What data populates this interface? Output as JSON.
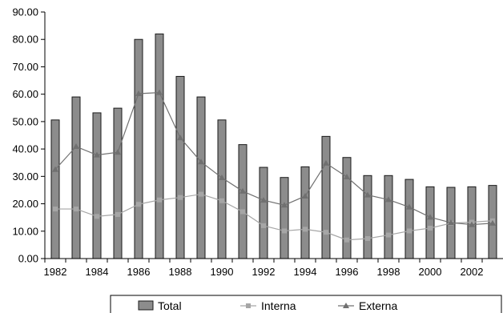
{
  "chart_data": {
    "type": "bar",
    "title": "",
    "xlabel": "",
    "ylabel": "",
    "ylim": [
      0,
      90
    ],
    "y_ticks": [
      "0.00",
      "10.00",
      "20.00",
      "30.00",
      "40.00",
      "50.00",
      "60.00",
      "70.00",
      "80.00",
      "90.00"
    ],
    "x": [
      1982,
      1983,
      1984,
      1985,
      1986,
      1987,
      1988,
      1989,
      1990,
      1991,
      1992,
      1993,
      1994,
      1995,
      1996,
      1997,
      1998,
      1999,
      2000,
      2001,
      2002,
      2003
    ],
    "x_tick_labels": [
      "1982",
      "1984",
      "1986",
      "1988",
      "1990",
      "1992",
      "1994",
      "1996",
      "1998",
      "2000",
      "2002"
    ],
    "grid": false,
    "legend_position": "bottom",
    "series": [
      {
        "name": "Total",
        "kind": "bar",
        "color": "#8c8c8c",
        "values": [
          50.6,
          59.0,
          53.2,
          54.9,
          80.0,
          82.0,
          66.5,
          59.0,
          50.6,
          41.6,
          33.3,
          29.6,
          33.5,
          44.6,
          36.9,
          30.3,
          30.3,
          28.9,
          26.2,
          26.0,
          26.2,
          26.7
        ]
      },
      {
        "name": "Interna",
        "kind": "line",
        "marker": "square",
        "color": "#a6a6a6",
        "values": [
          18.1,
          18.1,
          15.4,
          16.1,
          19.8,
          21.4,
          22.3,
          23.5,
          21.1,
          17.1,
          12.0,
          10.1,
          10.7,
          9.6,
          6.8,
          7.3,
          8.6,
          10.1,
          11.1,
          12.9,
          13.3,
          13.8
        ]
      },
      {
        "name": "Externa",
        "kind": "line",
        "marker": "triangle",
        "color": "#707070",
        "values": [
          32.5,
          40.9,
          37.8,
          38.8,
          60.2,
          60.6,
          44.1,
          35.3,
          29.5,
          24.6,
          21.3,
          19.5,
          22.8,
          34.8,
          29.8,
          23.2,
          21.5,
          18.8,
          15.1,
          13.1,
          12.4,
          12.9
        ]
      }
    ]
  }
}
